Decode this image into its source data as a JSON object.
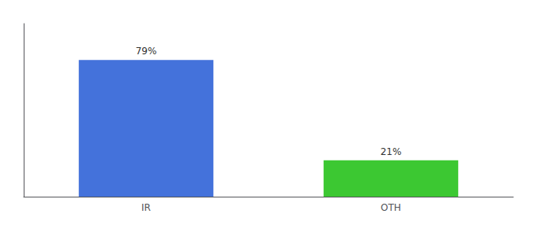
{
  "chart_data": {
    "type": "bar",
    "categories": [
      "IR",
      "OTH"
    ],
    "values": [
      79,
      21
    ],
    "value_labels": [
      "79%",
      "21%"
    ],
    "colors": [
      "#4472db",
      "#3cc832"
    ],
    "data_labels": true,
    "ylim": [
      0,
      100
    ],
    "tick_labels": "x",
    "grid": false
  }
}
